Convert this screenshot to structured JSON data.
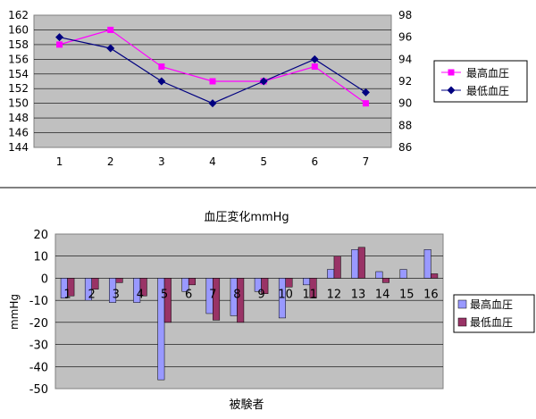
{
  "chart_data": [
    {
      "type": "line",
      "categories": [
        "1",
        "2",
        "3",
        "4",
        "5",
        "6",
        "7"
      ],
      "y_left_ticks": [
        "162",
        "160",
        "158",
        "156",
        "154",
        "152",
        "150",
        "148",
        "146",
        "144"
      ],
      "y_right_ticks": [
        "98",
        "96",
        "94",
        "92",
        "90",
        "88",
        "86"
      ],
      "ylim_left": [
        144,
        162
      ],
      "ylim_right": [
        86,
        98
      ],
      "series": [
        {
          "name": "最高血圧",
          "axis": "left",
          "color": "#ff00ff",
          "marker": "square",
          "values": [
            158,
            160,
            155,
            153,
            153,
            155,
            150
          ]
        },
        {
          "name": "最低血圧",
          "axis": "right",
          "color": "#000080",
          "marker": "diamond",
          "values": [
            96,
            95,
            92,
            90,
            92,
            94,
            91
          ]
        }
      ],
      "legend": "right",
      "grid": true
    },
    {
      "type": "bar",
      "title": "血圧変化mmHg",
      "xlabel": "被験者",
      "ylabel": "mmHg",
      "categories": [
        "1",
        "2",
        "3",
        "4",
        "5",
        "6",
        "7",
        "8",
        "9",
        "10",
        "11",
        "12",
        "13",
        "14",
        "15",
        "16"
      ],
      "y_ticks": [
        "20",
        "10",
        "0",
        "-10",
        "-20",
        "-30",
        "-40",
        "-50"
      ],
      "ylim": [
        -50,
        20
      ],
      "series": [
        {
          "name": "最高血圧",
          "color": "#9999ff",
          "values": [
            -9,
            -10,
            -11,
            -11,
            -46,
            -6,
            -16,
            -17,
            -6,
            -18,
            -3,
            4,
            13,
            3,
            4,
            13
          ]
        },
        {
          "name": "最低血圧",
          "color": "#993366",
          "values": [
            -8,
            -5,
            -2,
            -8,
            -20,
            -3,
            -19,
            -20,
            -7,
            -4,
            -9,
            10,
            14,
            -2,
            0,
            2
          ]
        }
      ],
      "legend": "right",
      "grid": true
    }
  ]
}
